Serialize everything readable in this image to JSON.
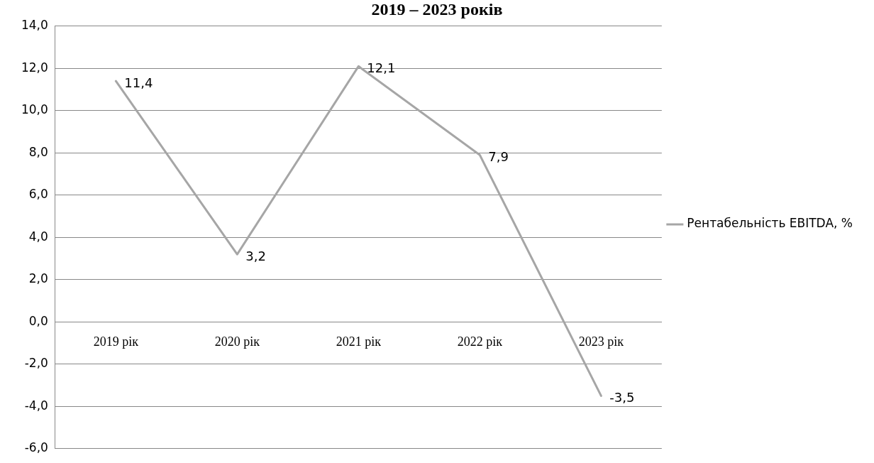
{
  "chart_data": {
    "type": "line",
    "title": "2019 – 2023 років",
    "categories": [
      "2019 рік",
      "2020 рік",
      "2021 рік",
      "2022 рік",
      "2023 рік"
    ],
    "series": [
      {
        "name": "Рентабельність EBITDA, %",
        "color": "#a6a6a6",
        "values": [
          11.4,
          3.2,
          12.1,
          7.9,
          -3.5
        ]
      }
    ],
    "value_labels": [
      "11,4",
      "3,2",
      "12,1",
      "7,9",
      "-3,5"
    ],
    "ylim": [
      -6,
      14
    ],
    "yticks": [
      {
        "value": -6,
        "label": "-6,0"
      },
      {
        "value": -4,
        "label": "-4,0"
      },
      {
        "value": -2,
        "label": "-2,0"
      },
      {
        "value": 0,
        "label": "0,0"
      },
      {
        "value": 2,
        "label": "2,0"
      },
      {
        "value": 4,
        "label": "4,0"
      },
      {
        "value": 6,
        "label": "6,0"
      },
      {
        "value": 8,
        "label": "8,0"
      },
      {
        "value": 10,
        "label": "10,0"
      },
      {
        "value": 12,
        "label": "12,0"
      },
      {
        "value": 14,
        "label": "14,0"
      }
    ],
    "grid": "y",
    "legend": "right",
    "marker": "none",
    "line_style": "solid"
  }
}
